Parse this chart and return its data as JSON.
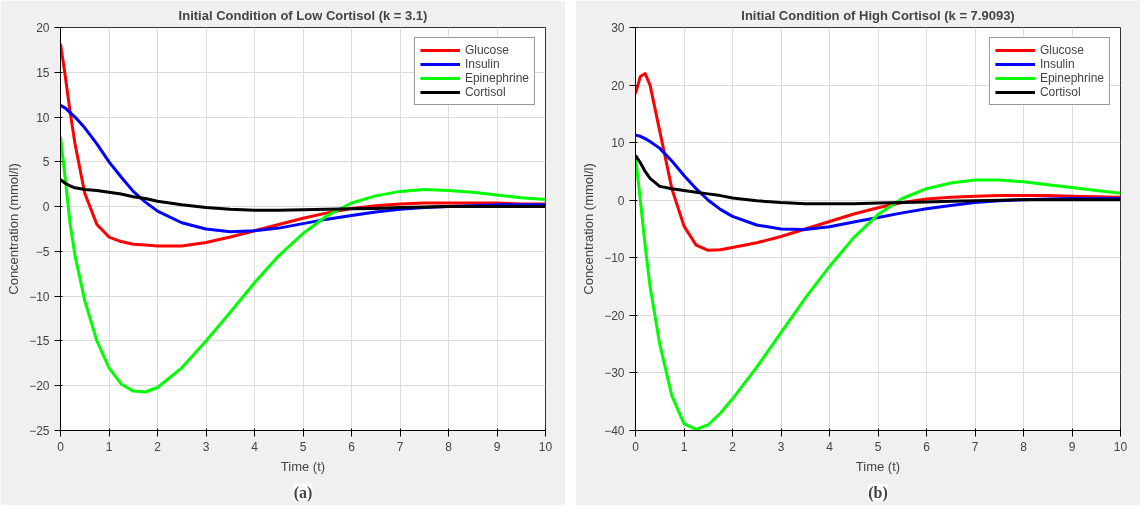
{
  "chart_data": [
    {
      "type": "line",
      "title": "Initial Condition of Low Cortisol (k = 3.1)",
      "xlabel": "Time (t)",
      "ylabel": "Concentration (mmol/l)",
      "annotations": [
        "(a)"
      ],
      "x": [
        0,
        0.1,
        0.2,
        0.3,
        0.5,
        0.75,
        1,
        1.25,
        1.5,
        1.75,
        2,
        2.5,
        3,
        3.5,
        4,
        4.5,
        5,
        5.5,
        6,
        6.5,
        7,
        7.5,
        8,
        8.5,
        9,
        9.5,
        10
      ],
      "series": [
        {
          "name": "Glucose",
          "color": "#ff0000",
          "values": [
            18.2,
            14.5,
            10.5,
            7,
            1.5,
            -2,
            -3.4,
            -3.9,
            -4.2,
            -4.3,
            -4.4,
            -4.4,
            -4.0,
            -3.4,
            -2.7,
            -2,
            -1.3,
            -0.7,
            -0.2,
            0.1,
            0.3,
            0.4,
            0.4,
            0.4,
            0.4,
            0.3,
            0.3
          ]
        },
        {
          "name": "Insulin",
          "color": "#0000ff",
          "values": [
            11.3,
            11,
            10.5,
            10,
            8.8,
            7,
            5,
            3.3,
            1.7,
            0.5,
            -0.5,
            -1.8,
            -2.5,
            -2.8,
            -2.7,
            -2.4,
            -1.9,
            -1.4,
            -1,
            -0.6,
            -0.3,
            -0.1,
            0,
            0.1,
            0.2,
            0.2,
            0.2
          ]
        },
        {
          "name": "Epinephrine",
          "color": "#00ff00",
          "values": [
            7.8,
            3,
            -2,
            -5.5,
            -10.5,
            -15,
            -18,
            -19.8,
            -20.6,
            -20.7,
            -20.2,
            -18,
            -15,
            -11.8,
            -8.5,
            -5.5,
            -3,
            -1,
            0.4,
            1.2,
            1.7,
            1.9,
            1.8,
            1.6,
            1.3,
            1.0,
            0.8
          ]
        },
        {
          "name": "Cortisol",
          "color": "#000000",
          "values": [
            3,
            2.6,
            2.3,
            2.1,
            1.9,
            1.8,
            1.6,
            1.4,
            1.1,
            0.9,
            0.6,
            0.2,
            -0.1,
            -0.3,
            -0.4,
            -0.4,
            -0.35,
            -0.3,
            -0.25,
            -0.2,
            -0.1,
            -0.05,
            0,
            0,
            0,
            0,
            0
          ]
        }
      ],
      "xlim": [
        0,
        10
      ],
      "xticks": [
        0,
        1,
        2,
        3,
        4,
        5,
        6,
        7,
        8,
        9,
        10
      ],
      "ylim": [
        -25,
        20
      ],
      "yticks": [
        -25,
        -20,
        -15,
        -10,
        -5,
        0,
        5,
        10,
        15,
        20
      ],
      "grid": true,
      "legend": "top right",
      "line_style": "solid"
    },
    {
      "type": "line",
      "title": "Initial Condition of High Cortisol (k = 7.9093)",
      "xlabel": "Time (t)",
      "ylabel": "Concentration (mmol/l)",
      "annotations": [
        "(b)"
      ],
      "x": [
        0,
        0.1,
        0.2,
        0.3,
        0.5,
        0.75,
        1,
        1.25,
        1.5,
        1.75,
        2,
        2.5,
        3,
        3.5,
        4,
        4.5,
        5,
        5.5,
        6,
        6.5,
        7,
        7.5,
        8,
        8.5,
        9,
        9.5,
        10
      ],
      "series": [
        {
          "name": "Glucose",
          "color": "#ff0000",
          "values": [
            18.5,
            21.5,
            22,
            20,
            12,
            2,
            -4.5,
            -7.8,
            -8.7,
            -8.6,
            -8.2,
            -7.4,
            -6.3,
            -5,
            -3.7,
            -2.4,
            -1.3,
            -0.4,
            0.2,
            0.5,
            0.7,
            0.8,
            0.8,
            0.8,
            0.7,
            0.6,
            0.5
          ]
        },
        {
          "name": "Insulin",
          "color": "#0000ff",
          "values": [
            11.3,
            11.1,
            10.7,
            10.2,
            9,
            6.8,
            4.3,
            2,
            0,
            -1.6,
            -2.8,
            -4.3,
            -5,
            -5.1,
            -4.6,
            -3.8,
            -3,
            -2.2,
            -1.5,
            -0.9,
            -0.4,
            -0.1,
            0.1,
            0.2,
            0.3,
            0.3,
            0.3
          ]
        },
        {
          "name": "Epinephrine",
          "color": "#00ff00",
          "values": [
            7.5,
            0,
            -8,
            -15,
            -25,
            -34,
            -38.8,
            -39.8,
            -39,
            -37,
            -34.5,
            -29,
            -23,
            -17,
            -11.5,
            -6.5,
            -2.5,
            0.3,
            2,
            3,
            3.5,
            3.5,
            3.2,
            2.7,
            2.2,
            1.7,
            1.2
          ]
        },
        {
          "name": "Cortisol",
          "color": "#000000",
          "values": [
            7.8,
            6.5,
            5,
            3.8,
            2.4,
            2,
            1.7,
            1.4,
            1.1,
            0.8,
            0.4,
            -0.1,
            -0.4,
            -0.6,
            -0.6,
            -0.6,
            -0.5,
            -0.4,
            -0.3,
            -0.2,
            -0.1,
            0,
            0.1,
            0.1,
            0.1,
            0.1,
            0.1
          ]
        }
      ],
      "xlim": [
        0,
        10
      ],
      "xticks": [
        0,
        1,
        2,
        3,
        4,
        5,
        6,
        7,
        8,
        9,
        10
      ],
      "ylim": [
        -40,
        30
      ],
      "yticks": [
        -40,
        -30,
        -20,
        -10,
        0,
        10,
        20,
        30
      ],
      "grid": true,
      "legend": "top right",
      "line_style": "solid"
    }
  ]
}
